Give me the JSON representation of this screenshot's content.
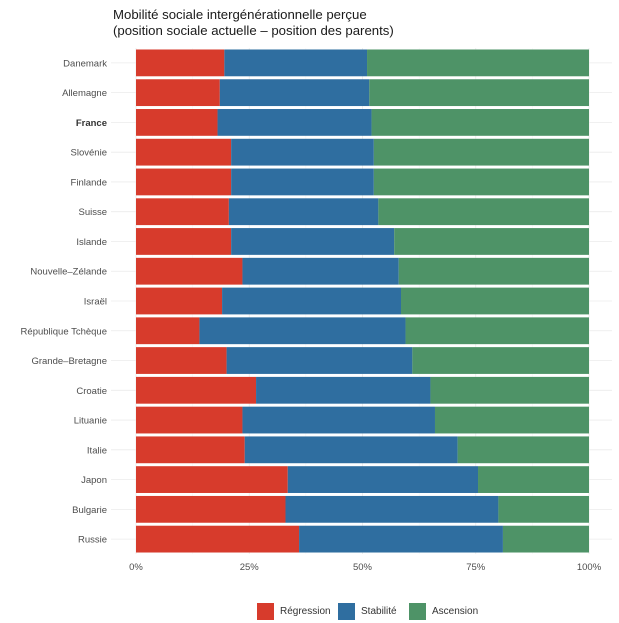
{
  "chart_data": {
    "type": "bar",
    "orientation": "horizontal",
    "stacked": true,
    "title": "Mobilité sociale intergénérationnelle perçue",
    "subtitle": "(position sociale actuelle – position des parents)",
    "xlabel": "",
    "ylabel": "",
    "xlim": [
      0,
      100
    ],
    "x_ticks": [
      "0%",
      "25%",
      "50%",
      "75%",
      "100%"
    ],
    "grid": true,
    "legend_position": "bottom",
    "highlight_category": "France",
    "categories": [
      "Danemark",
      "Allemagne",
      "France",
      "Slovénie",
      "Finlande",
      "Suisse",
      "Islande",
      "Nouvelle–Zélande",
      "Israël",
      "République Tchèque",
      "Grande–Bretagne",
      "Croatie",
      "Lituanie",
      "Italie",
      "Japon",
      "Bulgarie",
      "Russie"
    ],
    "series": [
      {
        "name": "Régression",
        "color": "#d73b2c",
        "values": [
          19.5,
          18.5,
          18,
          21,
          21,
          20.5,
          21,
          23.5,
          19,
          14,
          20,
          26.5,
          23.5,
          24,
          33.5,
          33,
          36
        ]
      },
      {
        "name": "Stabilité",
        "color": "#2f6ea0",
        "values": [
          31.5,
          33,
          34,
          31.5,
          31.5,
          33,
          36,
          34.5,
          39.5,
          45.5,
          41,
          38.5,
          42.5,
          47,
          42,
          47,
          45
        ]
      },
      {
        "name": "Ascension",
        "color": "#4e9367",
        "values": [
          49,
          48.5,
          48,
          47.5,
          47.5,
          46.5,
          43,
          42,
          41.5,
          40.5,
          39,
          35,
          34,
          29,
          24.5,
          20,
          19
        ]
      }
    ]
  }
}
